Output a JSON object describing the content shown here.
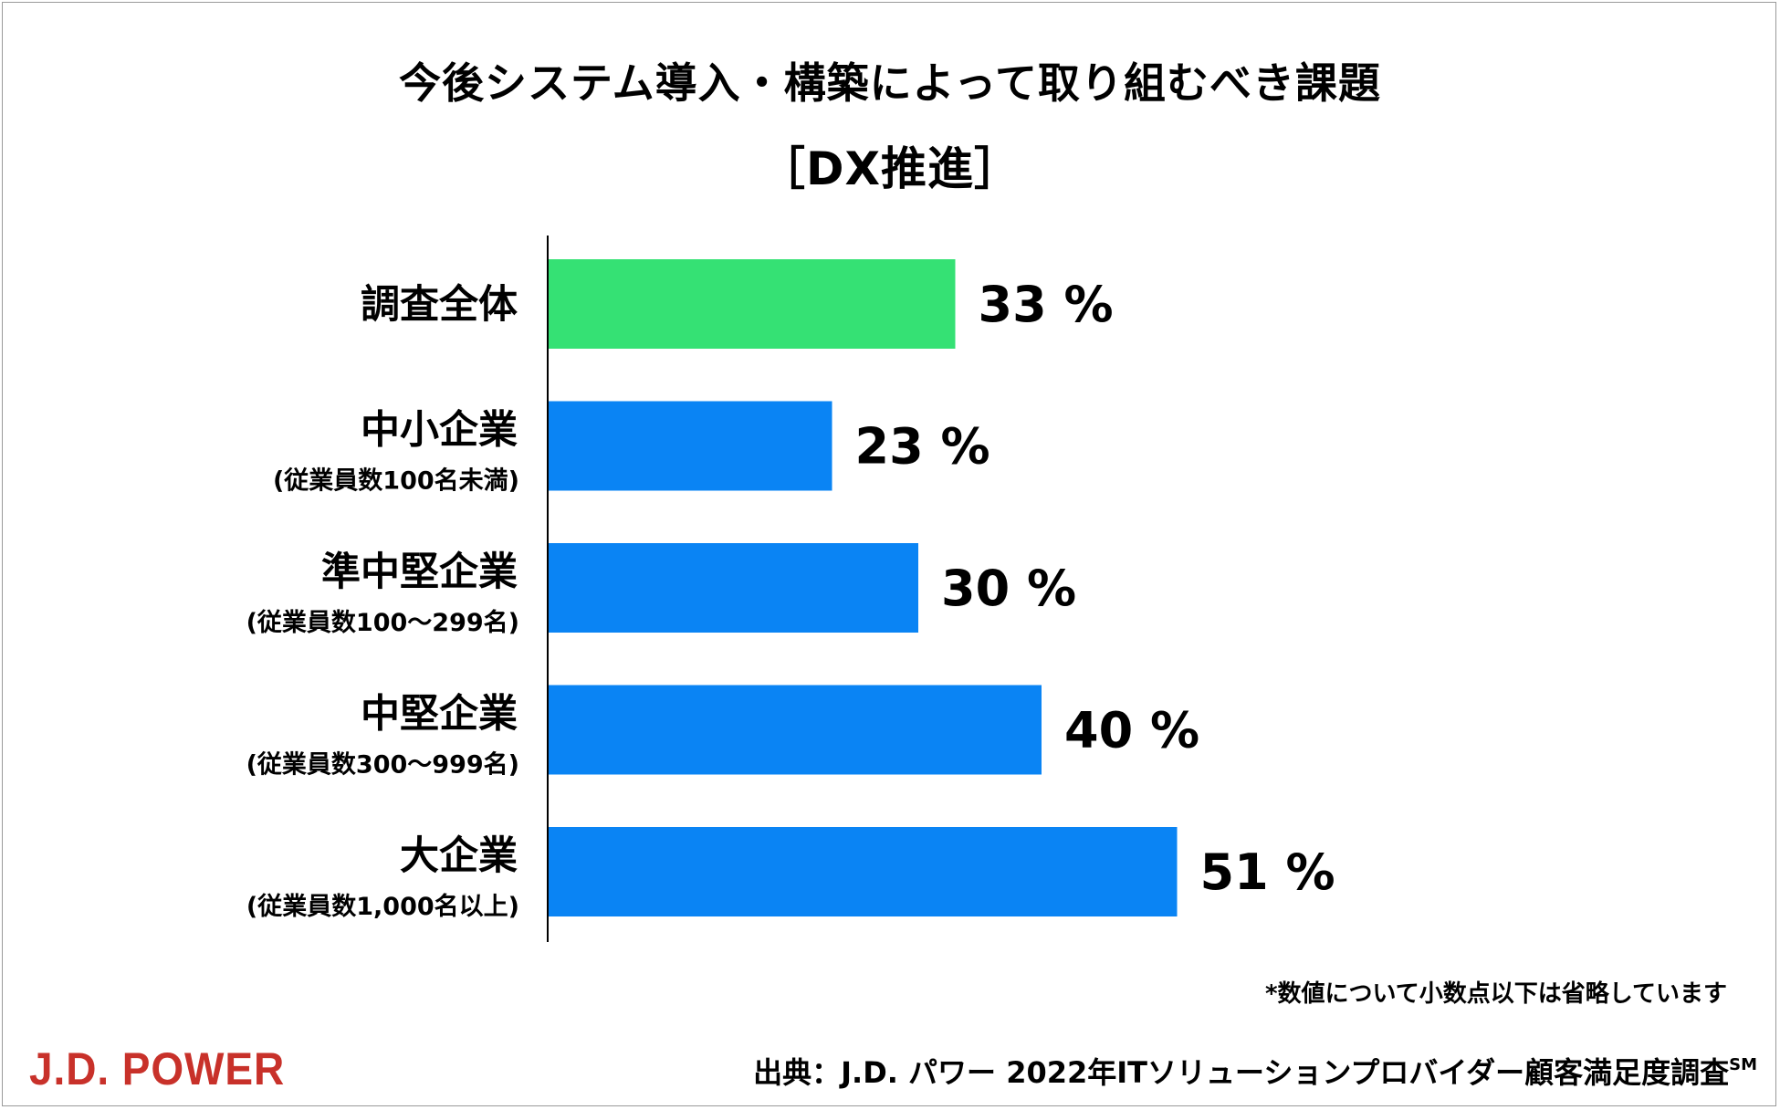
{
  "header": {
    "title": "今後システム導入・構築によって取り組むべき課題",
    "subtitle": "［DX推進］"
  },
  "chart_data": {
    "type": "bar",
    "orientation": "horizontal",
    "categories": [
      {
        "label": "調査全体",
        "sub": ""
      },
      {
        "label": "中小企業",
        "sub": "(従業員数100名未満)"
      },
      {
        "label": "準中堅企業",
        "sub": "(従業員数100～299名)"
      },
      {
        "label": "中堅企業",
        "sub": "(従業員数300～999名)"
      },
      {
        "label": "大企業",
        "sub": "(従業員数1,000名以上)"
      }
    ],
    "values": [
      33,
      23,
      30,
      40,
      51
    ],
    "value_labels": [
      "33 %",
      "23 %",
      "30 %",
      "40 %",
      "51 %"
    ],
    "colors": [
      "#35e174",
      "#0a84f4",
      "#0a84f4",
      "#0a84f4",
      "#0a84f4"
    ],
    "xlim": [
      0,
      100
    ],
    "grid": false,
    "legend": "none"
  },
  "footer": {
    "note": "*数値について小数点以下は省略しています",
    "source": "出典：J.D. パワー 2022年ITソリューションプロバイダー顧客満足度調査",
    "source_mark": "SM",
    "logo": "J.D. POWER"
  }
}
